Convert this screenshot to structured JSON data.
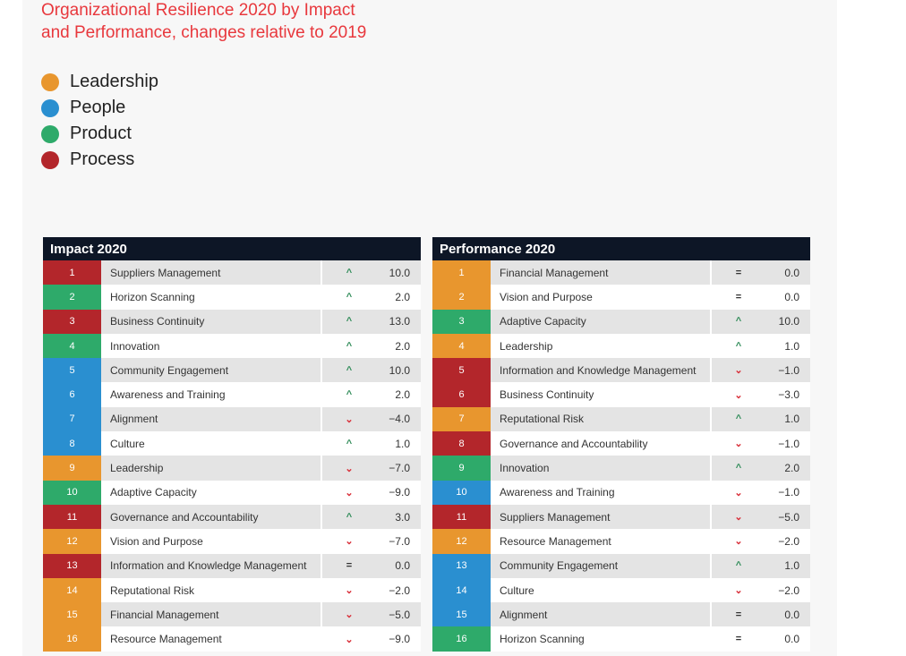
{
  "title_line1": "Organizational Resilience 2020 by Impact",
  "title_line2": "and Performance, changes relative to 2019",
  "colors": {
    "Leadership": "#e8962e",
    "People": "#2a8fd0",
    "Product": "#2eaa6a",
    "Process": "#b3262b",
    "header": "#0d1626",
    "up": "#2e8b57",
    "down": "#d9303a"
  },
  "legend": [
    "Leadership",
    "People",
    "Product",
    "Process"
  ],
  "chart_data": {
    "type": "table",
    "tables": [
      {
        "title": "Impact 2020",
        "rows": [
          {
            "rank": "1",
            "name": "Suppliers Management",
            "category": "Process",
            "trend": "up",
            "change": "10.0"
          },
          {
            "rank": "2",
            "name": "Horizon Scanning",
            "category": "Product",
            "trend": "up",
            "change": "2.0"
          },
          {
            "rank": "3",
            "name": "Business Continuity",
            "category": "Process",
            "trend": "up",
            "change": "13.0"
          },
          {
            "rank": "4",
            "name": "Innovation",
            "category": "Product",
            "trend": "up",
            "change": "2.0"
          },
          {
            "rank": "5",
            "name": "Community Engagement",
            "category": "People",
            "trend": "up",
            "change": "10.0"
          },
          {
            "rank": "6",
            "name": "Awareness and Training",
            "category": "People",
            "trend": "up",
            "change": "2.0"
          },
          {
            "rank": "7",
            "name": "Alignment",
            "category": "People",
            "trend": "down",
            "change": "-4.0"
          },
          {
            "rank": "8",
            "name": "Culture",
            "category": "People",
            "trend": "up",
            "change": "1.0"
          },
          {
            "rank": "9",
            "name": "Leadership",
            "category": "Leadership",
            "trend": "down",
            "change": "-7.0"
          },
          {
            "rank": "10",
            "name": "Adaptive Capacity",
            "category": "Product",
            "trend": "down",
            "change": "-9.0"
          },
          {
            "rank": "11",
            "name": "Governance and Accountability",
            "category": "Process",
            "trend": "up",
            "change": "3.0"
          },
          {
            "rank": "12",
            "name": "Vision and Purpose",
            "category": "Leadership",
            "trend": "down",
            "change": "-7.0"
          },
          {
            "rank": "13",
            "name": "Information and Knowledge Management",
            "category": "Process",
            "trend": "same",
            "change": "0.0"
          },
          {
            "rank": "14",
            "name": "Reputational Risk",
            "category": "Leadership",
            "trend": "down",
            "change": "-2.0"
          },
          {
            "rank": "15",
            "name": "Financial Management",
            "category": "Leadership",
            "trend": "down",
            "change": "-5.0"
          },
          {
            "rank": "16",
            "name": "Resource Management",
            "category": "Leadership",
            "trend": "down",
            "change": "-9.0"
          }
        ]
      },
      {
        "title": "Performance 2020",
        "rows": [
          {
            "rank": "1",
            "name": "Financial Management",
            "category": "Leadership",
            "trend": "same",
            "change": "0.0"
          },
          {
            "rank": "2",
            "name": "Vision and Purpose",
            "category": "Leadership",
            "trend": "same",
            "change": "0.0"
          },
          {
            "rank": "3",
            "name": "Adaptive Capacity",
            "category": "Product",
            "trend": "up",
            "change": "10.0"
          },
          {
            "rank": "4",
            "name": "Leadership",
            "category": "Leadership",
            "trend": "up",
            "change": "1.0"
          },
          {
            "rank": "5",
            "name": "Information and Knowledge Management",
            "category": "Process",
            "trend": "down",
            "change": "-1.0"
          },
          {
            "rank": "6",
            "name": "Business Continuity",
            "category": "Process",
            "trend": "down",
            "change": "-3.0"
          },
          {
            "rank": "7",
            "name": "Reputational Risk",
            "category": "Leadership",
            "trend": "up",
            "change": "1.0"
          },
          {
            "rank": "8",
            "name": "Governance and Accountability",
            "category": "Process",
            "trend": "down",
            "change": "-1.0"
          },
          {
            "rank": "9",
            "name": "Innovation",
            "category": "Product",
            "trend": "up",
            "change": "2.0"
          },
          {
            "rank": "10",
            "name": "Awareness and Training",
            "category": "People",
            "trend": "down",
            "change": "-1.0"
          },
          {
            "rank": "11",
            "name": "Suppliers Management",
            "category": "Process",
            "trend": "down",
            "change": "-5.0"
          },
          {
            "rank": "12",
            "name": "Resource Management",
            "category": "Leadership",
            "trend": "down",
            "change": "-2.0"
          },
          {
            "rank": "13",
            "name": "Community Engagement",
            "category": "People",
            "trend": "up",
            "change": "1.0"
          },
          {
            "rank": "14",
            "name": "Culture",
            "category": "People",
            "trend": "down",
            "change": "-2.0"
          },
          {
            "rank": "15",
            "name": "Alignment",
            "category": "People",
            "trend": "same",
            "change": "0.0"
          },
          {
            "rank": "16",
            "name": "Horizon Scanning",
            "category": "Product",
            "trend": "same",
            "change": "0.0"
          }
        ]
      }
    ]
  }
}
